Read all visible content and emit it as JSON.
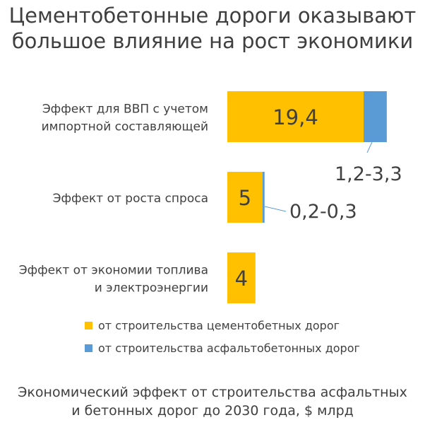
{
  "title": {
    "line1": "Цементобетонные дороги оказывают",
    "line2": "большое влияние на рост экономики"
  },
  "footnote": {
    "line1": "Экономический эффект от строительства асфальтных",
    "line2": "и бетонных дорог до 2030 года, $ млрд"
  },
  "colors": {
    "cement": "#FFC000",
    "asphalt": "#5B9BD5",
    "text": "#404040",
    "leader": "#5B9BD5"
  },
  "chart_data": {
    "type": "bar",
    "orientation": "horizontal",
    "stacked": true,
    "categories": [
      [
        "Эффект для ВВП с учетом",
        "импортной составляющей"
      ],
      [
        "Эффект от роста спроса"
      ],
      [
        "Эффект от экономии топлива",
        "и электроэнергии"
      ]
    ],
    "series": [
      {
        "name": "от строительства цементобетных дорог",
        "color": "#FFC000",
        "values": [
          19.4,
          5,
          4
        ],
        "labels": [
          "19,4",
          "5",
          "4"
        ]
      },
      {
        "name": "от строительства асфальтобетонных дорог",
        "color": "#5B9BD5",
        "values": [
          3.3,
          0.3,
          0
        ],
        "labels": [
          "1,2-3,3",
          "0,2-0,3",
          ""
        ]
      }
    ],
    "xlim": [
      0,
      23
    ],
    "grid": false,
    "legend": "bottom"
  }
}
